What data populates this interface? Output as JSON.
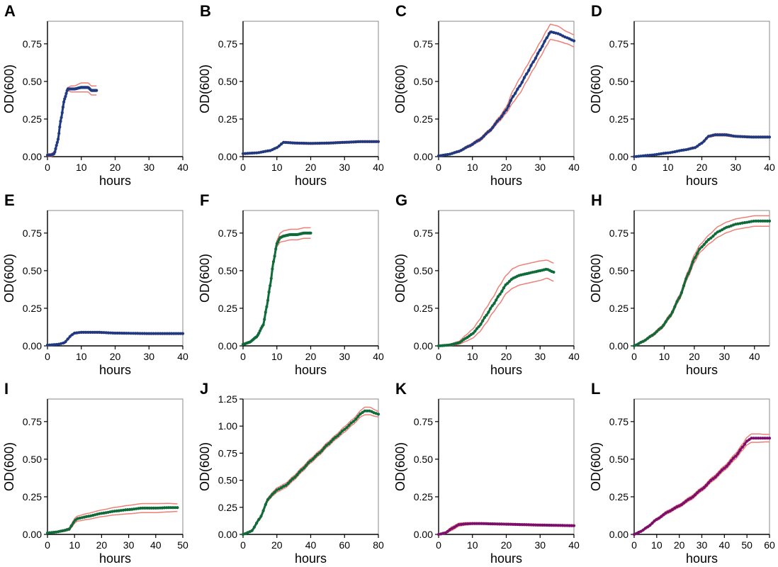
{
  "colors": {
    "blue": "#1f3a80",
    "green": "#0f6b3a",
    "purple": "#7b0f6e",
    "band": "#ef7f76",
    "axis": "#000000"
  },
  "chart_data": [
    {
      "panel": "A",
      "type": "line",
      "xlabel": "hours",
      "ylabel": "OD(600)",
      "xlim": [
        0,
        40
      ],
      "ylim": [
        0,
        0.9
      ],
      "xticks": [
        "0",
        "10",
        "20",
        "30",
        "40"
      ],
      "yticks": [
        "0.00",
        "0.25",
        "0.50",
        "0.75"
      ],
      "grid": false,
      "series_color": "blue",
      "x": [
        0,
        1,
        2,
        3,
        4,
        5,
        6,
        7,
        8,
        10,
        12,
        13,
        14.5
      ],
      "y": [
        0.01,
        0.01,
        0.02,
        0.1,
        0.25,
        0.38,
        0.45,
        0.45,
        0.45,
        0.46,
        0.46,
        0.44,
        0.44
      ],
      "band_width": [
        0.01,
        0.01,
        0.01,
        0.01,
        0.01,
        0.01,
        0.01,
        0.02,
        0.02,
        0.03,
        0.03,
        0.03,
        0.03
      ]
    },
    {
      "panel": "B",
      "type": "line",
      "xlabel": "hours",
      "ylabel": "OD(600)",
      "xlim": [
        0,
        40
      ],
      "ylim": [
        0,
        0.9
      ],
      "xticks": [
        "0",
        "10",
        "20",
        "30",
        "40"
      ],
      "yticks": [
        "0.00",
        "0.25",
        "0.50",
        "0.75"
      ],
      "grid": false,
      "series_color": "blue",
      "x": [
        0,
        4,
        8,
        10,
        12,
        16,
        20,
        25,
        30,
        35,
        40
      ],
      "y": [
        0.02,
        0.025,
        0.04,
        0.06,
        0.095,
        0.09,
        0.088,
        0.09,
        0.095,
        0.1,
        0.1
      ],
      "band_width": [
        0.005,
        0.005,
        0.005,
        0.005,
        0.006,
        0.006,
        0.006,
        0.006,
        0.006,
        0.006,
        0.006
      ]
    },
    {
      "panel": "C",
      "type": "line",
      "xlabel": "hours",
      "ylabel": "OD(600)",
      "xlim": [
        0,
        40
      ],
      "ylim": [
        0,
        0.9
      ],
      "xticks": [
        "0",
        "10",
        "20",
        "30",
        "40"
      ],
      "yticks": [
        "0.00",
        "0.25",
        "0.50",
        "0.75"
      ],
      "grid": false,
      "series_color": "blue",
      "x": [
        0,
        3,
        6,
        9,
        12,
        15,
        18,
        20,
        22,
        24,
        26,
        28,
        30,
        32,
        33,
        35,
        38,
        40
      ],
      "y": [
        0.005,
        0.015,
        0.035,
        0.07,
        0.11,
        0.17,
        0.25,
        0.31,
        0.4,
        0.47,
        0.55,
        0.63,
        0.71,
        0.79,
        0.83,
        0.82,
        0.79,
        0.77
      ],
      "band_width": [
        0.005,
        0.005,
        0.006,
        0.008,
        0.01,
        0.01,
        0.015,
        0.02,
        0.04,
        0.05,
        0.05,
        0.05,
        0.05,
        0.05,
        0.05,
        0.05,
        0.04,
        0.04
      ]
    },
    {
      "panel": "D",
      "type": "line",
      "xlabel": "hours",
      "ylabel": "OD(600)",
      "xlim": [
        0,
        40
      ],
      "ylim": [
        0,
        0.9
      ],
      "xticks": [
        "0",
        "10",
        "20",
        "30",
        "40"
      ],
      "yticks": [
        "0.00",
        "0.25",
        "0.50",
        "0.75"
      ],
      "grid": false,
      "series_color": "blue",
      "x": [
        0,
        5,
        10,
        15,
        18,
        20,
        22,
        24,
        27,
        30,
        35,
        40
      ],
      "y": [
        0.0,
        0.01,
        0.025,
        0.045,
        0.06,
        0.09,
        0.135,
        0.145,
        0.145,
        0.135,
        0.13,
        0.13
      ],
      "band_width": [
        0.004,
        0.004,
        0.004,
        0.005,
        0.006,
        0.006,
        0.007,
        0.008,
        0.008,
        0.006,
        0.006,
        0.006
      ]
    },
    {
      "panel": "E",
      "type": "line",
      "xlabel": "hours",
      "ylabel": "OD(600)",
      "xlim": [
        0,
        40
      ],
      "ylim": [
        0,
        0.9
      ],
      "xticks": [
        "0",
        "10",
        "20",
        "30",
        "40"
      ],
      "yticks": [
        "0.00",
        "0.25",
        "0.50",
        "0.75"
      ],
      "grid": false,
      "series_color": "blue",
      "x": [
        0,
        3,
        5,
        6,
        7,
        8,
        10,
        15,
        20,
        30,
        40
      ],
      "y": [
        0.005,
        0.01,
        0.02,
        0.045,
        0.07,
        0.085,
        0.09,
        0.09,
        0.085,
        0.082,
        0.082
      ],
      "band_width": [
        0.003,
        0.003,
        0.004,
        0.006,
        0.006,
        0.006,
        0.005,
        0.005,
        0.005,
        0.005,
        0.005
      ]
    },
    {
      "panel": "F",
      "type": "line",
      "xlabel": "hours",
      "ylabel": "OD(600)",
      "xlim": [
        0,
        40
      ],
      "ylim": [
        0,
        0.9
      ],
      "xticks": [
        "0",
        "10",
        "20",
        "30",
        "40"
      ],
      "yticks": [
        "0.00",
        "0.25",
        "0.50",
        "0.75"
      ],
      "grid": false,
      "series_color": "green",
      "x": [
        0,
        2,
        4,
        6,
        7,
        8,
        9,
        10,
        11,
        12,
        14,
        16,
        18,
        20
      ],
      "y": [
        0.01,
        0.025,
        0.06,
        0.14,
        0.26,
        0.4,
        0.56,
        0.68,
        0.72,
        0.73,
        0.74,
        0.74,
        0.75,
        0.75
      ],
      "band_width": [
        0.005,
        0.005,
        0.008,
        0.01,
        0.012,
        0.015,
        0.015,
        0.02,
        0.03,
        0.035,
        0.035,
        0.035,
        0.035,
        0.035
      ]
    },
    {
      "panel": "G",
      "type": "line",
      "xlabel": "hours",
      "ylabel": "OD(600)",
      "xlim": [
        0,
        40
      ],
      "ylim": [
        0,
        0.9
      ],
      "xticks": [
        "0",
        "10",
        "20",
        "30",
        "40"
      ],
      "yticks": [
        "0.00",
        "0.25",
        "0.50",
        "0.75"
      ],
      "grid": false,
      "series_color": "green",
      "x": [
        0,
        3,
        6,
        8,
        10,
        12,
        14,
        16,
        18,
        20,
        22,
        24,
        26,
        28,
        30,
        32,
        34
      ],
      "y": [
        0.0,
        0.005,
        0.02,
        0.05,
        0.08,
        0.13,
        0.2,
        0.27,
        0.34,
        0.41,
        0.45,
        0.47,
        0.48,
        0.49,
        0.5,
        0.51,
        0.49
      ],
      "band_width": [
        0.003,
        0.005,
        0.01,
        0.02,
        0.03,
        0.04,
        0.05,
        0.05,
        0.06,
        0.06,
        0.065,
        0.065,
        0.065,
        0.065,
        0.065,
        0.06,
        0.06
      ]
    },
    {
      "panel": "H",
      "type": "line",
      "xlabel": "hours",
      "ylabel": "OD(600)",
      "xlim": [
        0,
        45
      ],
      "ylim": [
        0,
        0.9
      ],
      "xticks": [
        "0",
        "10",
        "20",
        "30",
        "40"
      ],
      "yticks": [
        "0.00",
        "0.25",
        "0.50",
        "0.75"
      ],
      "grid": false,
      "series_color": "green",
      "x": [
        0,
        3,
        6,
        9,
        12,
        15,
        18,
        20,
        22,
        25,
        28,
        31,
        34,
        37,
        40,
        43,
        45
      ],
      "y": [
        0.0,
        0.03,
        0.07,
        0.12,
        0.2,
        0.32,
        0.48,
        0.58,
        0.65,
        0.71,
        0.76,
        0.79,
        0.81,
        0.82,
        0.83,
        0.83,
        0.83
      ],
      "band_width": [
        0.005,
        0.006,
        0.008,
        0.01,
        0.012,
        0.015,
        0.02,
        0.025,
        0.025,
        0.03,
        0.035,
        0.035,
        0.035,
        0.035,
        0.035,
        0.035,
        0.035
      ]
    },
    {
      "panel": "I",
      "type": "line",
      "xlabel": "hours",
      "ylabel": "OD(600)",
      "xlim": [
        0,
        50
      ],
      "ylim": [
        0,
        0.9
      ],
      "xticks": [
        "0",
        "10",
        "20",
        "30",
        "40",
        "50"
      ],
      "yticks": [
        "0.00",
        "0.25",
        "0.50",
        "0.75"
      ],
      "grid": false,
      "series_color": "green",
      "x": [
        0,
        3,
        6,
        8,
        9,
        10,
        11,
        15,
        20,
        25,
        30,
        35,
        40,
        45,
        48
      ],
      "y": [
        0.01,
        0.015,
        0.025,
        0.035,
        0.06,
        0.09,
        0.105,
        0.12,
        0.14,
        0.155,
        0.165,
        0.175,
        0.175,
        0.178,
        0.178
      ],
      "band_width": [
        0.003,
        0.004,
        0.006,
        0.008,
        0.012,
        0.015,
        0.017,
        0.02,
        0.022,
        0.025,
        0.028,
        0.03,
        0.03,
        0.028,
        0.025
      ]
    },
    {
      "panel": "J",
      "type": "line",
      "xlabel": "hours",
      "ylabel": "OD(600)",
      "xlim": [
        0,
        80
      ],
      "ylim": [
        0,
        1.25
      ],
      "xticks": [
        "0",
        "20",
        "40",
        "60",
        "80"
      ],
      "yticks": [
        "0.00",
        "0.25",
        "0.50",
        "0.75",
        "1.00",
        "1.25"
      ],
      "grid": false,
      "series_color": "green",
      "x": [
        0,
        5,
        10,
        15,
        18,
        20,
        25,
        30,
        35,
        40,
        45,
        50,
        55,
        60,
        65,
        70,
        72,
        75,
        78,
        80
      ],
      "y": [
        0.0,
        0.03,
        0.15,
        0.33,
        0.38,
        0.41,
        0.45,
        0.52,
        0.6,
        0.68,
        0.75,
        0.83,
        0.9,
        0.97,
        1.04,
        1.12,
        1.14,
        1.14,
        1.12,
        1.11
      ],
      "band_width": [
        0.005,
        0.008,
        0.012,
        0.015,
        0.018,
        0.02,
        0.02,
        0.02,
        0.02,
        0.02,
        0.02,
        0.02,
        0.02,
        0.025,
        0.025,
        0.03,
        0.035,
        0.035,
        0.03,
        0.025
      ]
    },
    {
      "panel": "K",
      "type": "line",
      "xlabel": "hours",
      "ylabel": "OD(600)",
      "xlim": [
        0,
        40
      ],
      "ylim": [
        0,
        0.9
      ],
      "xticks": [
        "0",
        "10",
        "20",
        "30",
        "40"
      ],
      "yticks": [
        "0.00",
        "0.25",
        "0.50",
        "0.75"
      ],
      "grid": false,
      "series_color": "purple",
      "x": [
        0,
        2,
        4,
        6,
        8,
        10,
        13,
        16,
        20,
        25,
        30,
        35,
        40
      ],
      "y": [
        0.0,
        0.01,
        0.04,
        0.065,
        0.07,
        0.072,
        0.072,
        0.07,
        0.068,
        0.065,
        0.062,
        0.06,
        0.058
      ],
      "band_width": [
        0.004,
        0.006,
        0.012,
        0.01,
        0.008,
        0.006,
        0.006,
        0.006,
        0.006,
        0.006,
        0.006,
        0.006,
        0.006
      ]
    },
    {
      "panel": "L",
      "type": "line",
      "xlabel": "hours",
      "ylabel": "OD(600)",
      "xlim": [
        0,
        60
      ],
      "ylim": [
        0,
        0.9
      ],
      "xticks": [
        "0",
        "10",
        "20",
        "30",
        "40",
        "50",
        "60"
      ],
      "yticks": [
        "0.00",
        "0.25",
        "0.50",
        "0.75"
      ],
      "grid": false,
      "series_color": "purple",
      "x": [
        0,
        3,
        6,
        10,
        15,
        20,
        25,
        30,
        35,
        40,
        45,
        48,
        50,
        52,
        55,
        58,
        60
      ],
      "y": [
        0.0,
        0.02,
        0.05,
        0.1,
        0.15,
        0.19,
        0.24,
        0.3,
        0.37,
        0.44,
        0.52,
        0.58,
        0.62,
        0.64,
        0.64,
        0.64,
        0.64
      ],
      "band_width": [
        0.005,
        0.006,
        0.007,
        0.008,
        0.01,
        0.01,
        0.012,
        0.012,
        0.014,
        0.015,
        0.018,
        0.02,
        0.025,
        0.028,
        0.028,
        0.025,
        0.025
      ]
    }
  ]
}
